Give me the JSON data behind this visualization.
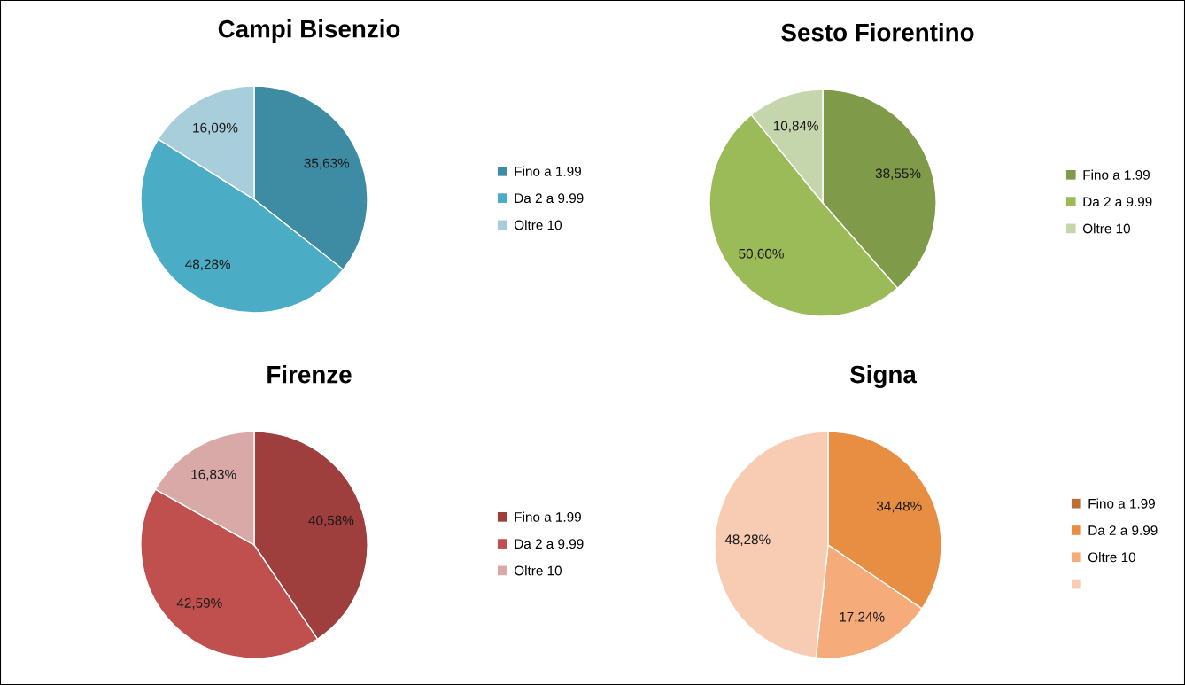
{
  "chart_data": [
    {
      "type": "pie",
      "title": "Campi Bisenzio",
      "categories": [
        "Fino a 1.99",
        "Da 2 a 9.99",
        "Oltre 10"
      ],
      "values": [
        35.63,
        48.28,
        16.09
      ],
      "colors": [
        "#3d8ca3",
        "#4bacc6",
        "#a8cedb"
      ],
      "value_labels": [
        "35,63%",
        "48,28%",
        "16,09%"
      ],
      "legend": "right"
    },
    {
      "type": "pie",
      "title": "Sesto Fiorentino",
      "categories": [
        "Fino a 1.99",
        "Da 2 a 9.99",
        "Oltre 10"
      ],
      "values": [
        38.55,
        50.6,
        10.84
      ],
      "colors": [
        "#7f9b4a",
        "#9bbb59",
        "#c6d6ac"
      ],
      "value_labels": [
        "38,55%",
        "50,60%",
        "10,84%"
      ],
      "legend": "right"
    },
    {
      "type": "pie",
      "title": "Firenze",
      "categories": [
        "Fino a 1.99",
        "Da 2 a 9.99",
        "Oltre 10"
      ],
      "values": [
        40.58,
        42.59,
        16.83
      ],
      "colors": [
        "#9e3f3d",
        "#c0504d",
        "#d9a9a8"
      ],
      "value_labels": [
        "40,58%",
        "42,59%",
        "16,83%"
      ],
      "legend": "right"
    },
    {
      "type": "pie",
      "title": "Signa",
      "categories": [
        "Fino a 1.99",
        "Da 2 a 9.99",
        "Oltre 10",
        null
      ],
      "values": [
        0,
        34.48,
        17.24,
        48.28
      ],
      "colors": [
        "#bd6f37",
        "#e88e42",
        "#f6ab7a",
        "#f8cbb3"
      ],
      "value_labels": [
        null,
        "34,48%",
        "17,24%",
        "48,28%"
      ],
      "legend": "right"
    }
  ]
}
